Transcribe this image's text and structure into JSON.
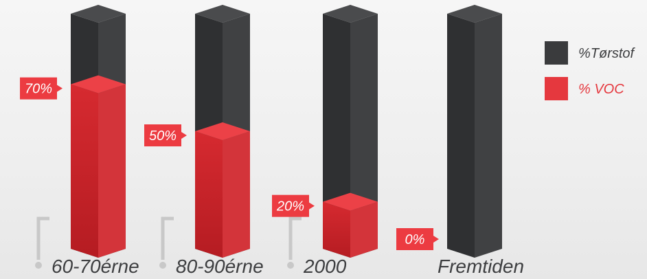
{
  "colors": {
    "dry": "#3a3b3d",
    "voc": "#e5383e",
    "label_bg": "#ec3b41",
    "text": "#3d3e40",
    "connector": "#c8c8c8"
  },
  "legend": [
    {
      "label": "%Tørstof",
      "color": "#3a3b3d"
    },
    {
      "label": "% VOC",
      "color": "#e5383e"
    }
  ],
  "chart_data": {
    "type": "bar",
    "stacked": true,
    "categories": [
      "60-70érne",
      "80-90érne",
      "2000",
      "Fremtiden"
    ],
    "series": [
      {
        "name": "% VOC",
        "values": [
          70,
          50,
          20,
          0
        ]
      },
      {
        "name": "%Tørstof",
        "values": [
          30,
          50,
          80,
          100
        ]
      }
    ],
    "data_labels": [
      "70%",
      "50%",
      "20%",
      "0%"
    ],
    "ylim": [
      0,
      100
    ],
    "grid": false,
    "legend_position": "top-right"
  }
}
